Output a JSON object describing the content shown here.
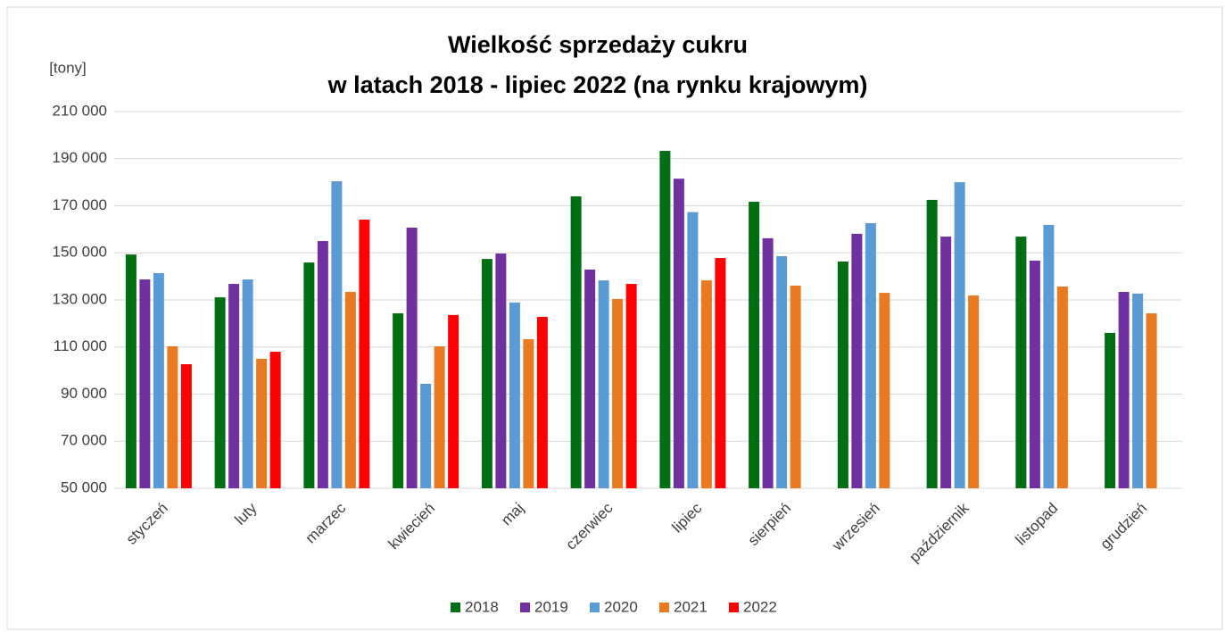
{
  "chart_data": {
    "type": "bar",
    "title": [
      "Wielkość sprzedaży cukru",
      "w latach 2018 - lipiec 2022 (na rynku krajowym)"
    ],
    "y_label": "[tony]",
    "categories": [
      "styczeń",
      "luty",
      "marzec",
      "kwiecień",
      "maj",
      "czerwiec",
      "lipiec",
      "sierpień",
      "wrzesień",
      "październik",
      "listopad",
      "grudzień"
    ],
    "series": [
      {
        "name": "2018",
        "color": "#006e13",
        "values": [
          149300,
          131100,
          145900,
          124300,
          147400,
          174000,
          193300,
          171700,
          146300,
          172500,
          156900,
          116000
        ]
      },
      {
        "name": "2019",
        "color": "#7030a0",
        "values": [
          138700,
          136800,
          155000,
          160700,
          149700,
          142900,
          181500,
          156200,
          158100,
          156900,
          146700,
          133400
        ]
      },
      {
        "name": "2020",
        "color": "#5b9bd5",
        "values": [
          141400,
          138700,
          180400,
          94400,
          128900,
          138300,
          167300,
          148600,
          162600,
          180000,
          161900,
          132700
        ]
      },
      {
        "name": "2021",
        "color": "#e97a22",
        "values": [
          110300,
          105000,
          133400,
          110300,
          113300,
          130400,
          138300,
          136100,
          133000,
          131900,
          135700,
          124300
        ]
      },
      {
        "name": "2022",
        "color": "#ff0000",
        "values": [
          102700,
          108000,
          164100,
          123600,
          122800,
          136800,
          147800,
          null,
          null,
          null,
          null,
          null
        ]
      }
    ],
    "ylim": [
      50000,
      210000
    ],
    "yticks": [
      {
        "value": 50000,
        "label": "50 000"
      },
      {
        "value": 70000,
        "label": "70 000"
      },
      {
        "value": 90000,
        "label": "90 000"
      },
      {
        "value": 110000,
        "label": "110 000"
      },
      {
        "value": 130000,
        "label": "130 000"
      },
      {
        "value": 150000,
        "label": "150 000"
      },
      {
        "value": 170000,
        "label": "170 000"
      },
      {
        "value": 190000,
        "label": "190 000"
      },
      {
        "value": 210000,
        "label": "210 000"
      }
    ],
    "grid": true,
    "legend": "bottom"
  }
}
